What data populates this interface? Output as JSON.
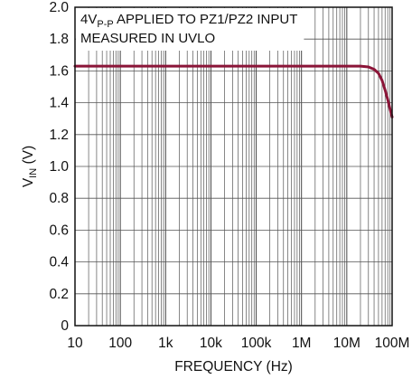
{
  "chart_data": {
    "type": "line",
    "xlabel": "FREQUENCY (Hz)",
    "ylabel": {
      "main": "V",
      "sub": "IN",
      "unit": " (V)"
    },
    "annotation": {
      "line1_prefix": "4V",
      "line1_sub": "P-P",
      "line1_suffix": " APPLIED TO PZ1/PZ2 INPUT",
      "line2": "MEASURED IN UVLO"
    },
    "x_scale": "log",
    "xlim": [
      10,
      100000000
    ],
    "ylim": [
      0,
      2.0
    ],
    "grid": true,
    "x_ticks": [
      {
        "value": 10,
        "label": "10"
      },
      {
        "value": 100,
        "label": "100"
      },
      {
        "value": 1000,
        "label": "1k"
      },
      {
        "value": 10000,
        "label": "10k"
      },
      {
        "value": 100000,
        "label": "100k"
      },
      {
        "value": 1000000,
        "label": "1M"
      },
      {
        "value": 10000000,
        "label": "10M"
      },
      {
        "value": 100000000,
        "label": "100M"
      }
    ],
    "y_ticks": [
      {
        "value": 0,
        "label": "0"
      },
      {
        "value": 0.2,
        "label": "0.2"
      },
      {
        "value": 0.4,
        "label": "0.4"
      },
      {
        "value": 0.6,
        "label": "0.6"
      },
      {
        "value": 0.8,
        "label": "0.8"
      },
      {
        "value": 1.0,
        "label": "1.0"
      },
      {
        "value": 1.2,
        "label": "1.2"
      },
      {
        "value": 1.4,
        "label": "1.4"
      },
      {
        "value": 1.6,
        "label": "1.6"
      },
      {
        "value": 1.8,
        "label": "1.8"
      },
      {
        "value": 2.0,
        "label": "2.0"
      }
    ],
    "series": [
      {
        "color": "#8b1538",
        "x": [
          10,
          100,
          1000,
          10000,
          100000,
          1000000,
          5000000,
          10000000,
          20000000,
          30000000,
          40000000,
          50000000,
          60000000,
          70000000,
          80000000,
          90000000,
          100000000
        ],
        "y": [
          1.63,
          1.63,
          1.63,
          1.63,
          1.63,
          1.63,
          1.63,
          1.63,
          1.63,
          1.625,
          1.61,
          1.585,
          1.54,
          1.48,
          1.42,
          1.36,
          1.31
        ]
      }
    ]
  }
}
